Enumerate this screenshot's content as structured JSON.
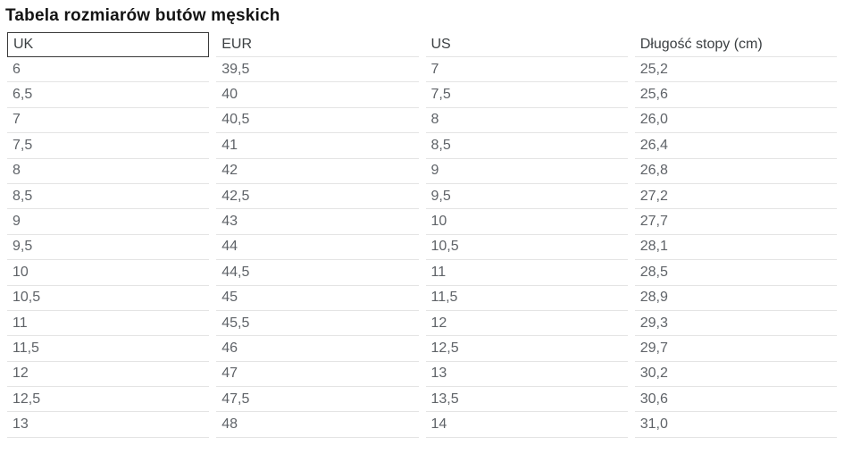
{
  "page": {
    "title": "Tabela rozmiarów butów męskich"
  },
  "table": {
    "columns": [
      {
        "key": "uk",
        "label": "UK",
        "selected": true
      },
      {
        "key": "eur",
        "label": "EUR",
        "selected": false
      },
      {
        "key": "us",
        "label": "US",
        "selected": false
      },
      {
        "key": "foot_length_cm",
        "label": "Długość stopy (cm)",
        "selected": false
      }
    ],
    "rows": [
      {
        "uk": "6",
        "eur": "39,5",
        "us": "7",
        "foot_length_cm": "25,2"
      },
      {
        "uk": "6,5",
        "eur": "40",
        "us": "7,5",
        "foot_length_cm": "25,6"
      },
      {
        "uk": "7",
        "eur": "40,5",
        "us": "8",
        "foot_length_cm": "26,0"
      },
      {
        "uk": "7,5",
        "eur": "41",
        "us": "8,5",
        "foot_length_cm": "26,4"
      },
      {
        "uk": "8",
        "eur": "42",
        "us": "9",
        "foot_length_cm": "26,8"
      },
      {
        "uk": "8,5",
        "eur": "42,5",
        "us": "9,5",
        "foot_length_cm": "27,2"
      },
      {
        "uk": "9",
        "eur": "43",
        "us": "10",
        "foot_length_cm": "27,7"
      },
      {
        "uk": "9,5",
        "eur": "44",
        "us": "10,5",
        "foot_length_cm": "28,1"
      },
      {
        "uk": "10",
        "eur": "44,5",
        "us": "11",
        "foot_length_cm": "28,5"
      },
      {
        "uk": "10,5",
        "eur": "45",
        "us": "11,5",
        "foot_length_cm": "28,9"
      },
      {
        "uk": "11",
        "eur": "45,5",
        "us": "12",
        "foot_length_cm": "29,3"
      },
      {
        "uk": "11,5",
        "eur": "46",
        "us": "12,5",
        "foot_length_cm": "29,7"
      },
      {
        "uk": "12",
        "eur": "47",
        "us": "13",
        "foot_length_cm": "30,2"
      },
      {
        "uk": "12,5",
        "eur": "47,5",
        "us": "13,5",
        "foot_length_cm": "30,6"
      },
      {
        "uk": "13",
        "eur": "48",
        "us": "14",
        "foot_length_cm": "31,0"
      }
    ]
  },
  "colors": {
    "title_text": "#141414",
    "header_text": "#3c4043",
    "body_text": "#5f6368",
    "row_divider": "#e4e4e4",
    "focus_border": "#3a3a3a",
    "background": "#ffffff"
  }
}
